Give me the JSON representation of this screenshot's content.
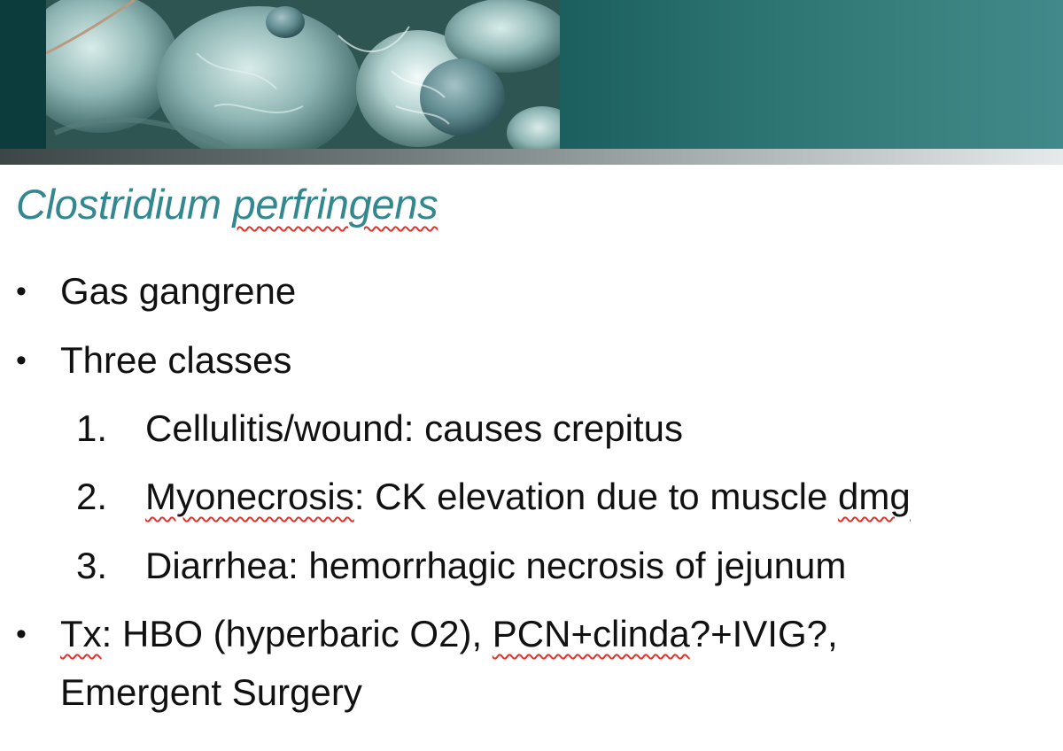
{
  "slide": {
    "title": {
      "italic_word": "Clostridium",
      "underlined_word": "perfringens"
    },
    "bullets": [
      {
        "marker": "•",
        "text": "Gas gangrene"
      },
      {
        "marker": "•",
        "text": "Three classes"
      }
    ],
    "numbered_items": [
      {
        "number": "1.",
        "text": "Cellulitis/wound:   causes crepitus"
      },
      {
        "number": "2.",
        "parts": {
          "flagged_a": "Myonecrosis",
          "middle": ":  CK elevation due to muscle ",
          "flagged_b": "dmg"
        }
      },
      {
        "number": "3.",
        "text": "Diarrhea:  hemorrhagic necrosis of jejunum"
      }
    ],
    "treatment": {
      "marker": "•",
      "flagged_a": "Tx",
      "mid": ":  HBO (hyperbaric O2), ",
      "flagged_b": "PCN+clinda",
      "tail": "?+IVIG?,",
      "line2": "Emergent Surgery"
    }
  },
  "colors": {
    "title_teal": "#33878f",
    "banner_teal": "#2c7472",
    "spell_check_red": "#e0332b"
  }
}
